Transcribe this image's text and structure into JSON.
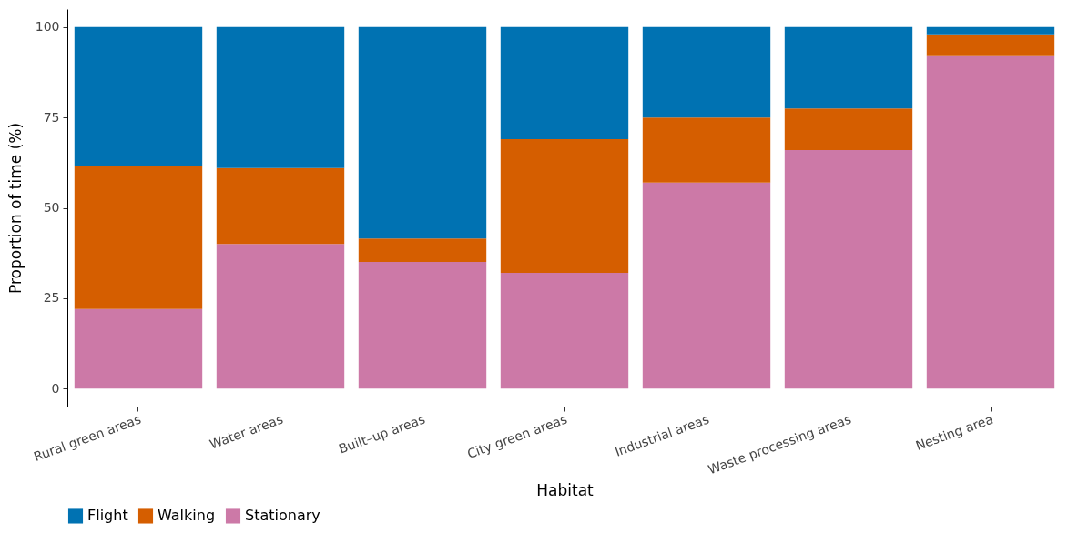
{
  "chart_data": {
    "type": "bar",
    "stacked": true,
    "xlabel": "Habitat",
    "ylabel": "Proportion of time (%)",
    "categories": [
      "Rural green areas",
      "Water areas",
      "Built–up areas",
      "City green areas",
      "Industrial areas",
      "Waste processing areas",
      "Nesting area"
    ],
    "series": [
      {
        "name": "Stationary",
        "color": "#cc79a7",
        "values": [
          22,
          40,
          35,
          32,
          57,
          66,
          92
        ]
      },
      {
        "name": "Walking",
        "color": "#d55e00",
        "values": [
          39.5,
          21,
          6.5,
          37,
          18,
          11.5,
          6
        ]
      },
      {
        "name": "Flight",
        "color": "#0072b2",
        "values": [
          38.5,
          39,
          58.5,
          31,
          25,
          22.5,
          2
        ]
      }
    ],
    "ylim": [
      -5,
      105
    ],
    "yticks": [
      0,
      25,
      50,
      75,
      100
    ],
    "grid": false,
    "legend": "bottom"
  }
}
